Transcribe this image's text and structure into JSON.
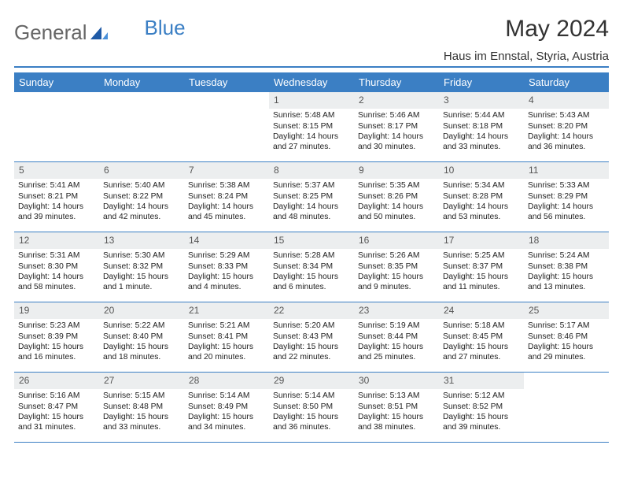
{
  "logo": {
    "text1": "General",
    "text2": "Blue"
  },
  "title": "May 2024",
  "location": "Haus im Ennstal, Styria, Austria",
  "colors": {
    "header_bg": "#3b7fc4",
    "header_text": "#ffffff",
    "daynum_bg": "#eceeef",
    "border": "#3b7fc4",
    "body_text": "#222222",
    "title_text": "#333333"
  },
  "day_names": [
    "Sunday",
    "Monday",
    "Tuesday",
    "Wednesday",
    "Thursday",
    "Friday",
    "Saturday"
  ],
  "weeks": [
    [
      {
        "empty": true
      },
      {
        "empty": true
      },
      {
        "empty": true
      },
      {
        "num": "1",
        "sunrise": "Sunrise: 5:48 AM",
        "sunset": "Sunset: 8:15 PM",
        "daylight1": "Daylight: 14 hours",
        "daylight2": "and 27 minutes."
      },
      {
        "num": "2",
        "sunrise": "Sunrise: 5:46 AM",
        "sunset": "Sunset: 8:17 PM",
        "daylight1": "Daylight: 14 hours",
        "daylight2": "and 30 minutes."
      },
      {
        "num": "3",
        "sunrise": "Sunrise: 5:44 AM",
        "sunset": "Sunset: 8:18 PM",
        "daylight1": "Daylight: 14 hours",
        "daylight2": "and 33 minutes."
      },
      {
        "num": "4",
        "sunrise": "Sunrise: 5:43 AM",
        "sunset": "Sunset: 8:20 PM",
        "daylight1": "Daylight: 14 hours",
        "daylight2": "and 36 minutes."
      }
    ],
    [
      {
        "num": "5",
        "sunrise": "Sunrise: 5:41 AM",
        "sunset": "Sunset: 8:21 PM",
        "daylight1": "Daylight: 14 hours",
        "daylight2": "and 39 minutes."
      },
      {
        "num": "6",
        "sunrise": "Sunrise: 5:40 AM",
        "sunset": "Sunset: 8:22 PM",
        "daylight1": "Daylight: 14 hours",
        "daylight2": "and 42 minutes."
      },
      {
        "num": "7",
        "sunrise": "Sunrise: 5:38 AM",
        "sunset": "Sunset: 8:24 PM",
        "daylight1": "Daylight: 14 hours",
        "daylight2": "and 45 minutes."
      },
      {
        "num": "8",
        "sunrise": "Sunrise: 5:37 AM",
        "sunset": "Sunset: 8:25 PM",
        "daylight1": "Daylight: 14 hours",
        "daylight2": "and 48 minutes."
      },
      {
        "num": "9",
        "sunrise": "Sunrise: 5:35 AM",
        "sunset": "Sunset: 8:26 PM",
        "daylight1": "Daylight: 14 hours",
        "daylight2": "and 50 minutes."
      },
      {
        "num": "10",
        "sunrise": "Sunrise: 5:34 AM",
        "sunset": "Sunset: 8:28 PM",
        "daylight1": "Daylight: 14 hours",
        "daylight2": "and 53 minutes."
      },
      {
        "num": "11",
        "sunrise": "Sunrise: 5:33 AM",
        "sunset": "Sunset: 8:29 PM",
        "daylight1": "Daylight: 14 hours",
        "daylight2": "and 56 minutes."
      }
    ],
    [
      {
        "num": "12",
        "sunrise": "Sunrise: 5:31 AM",
        "sunset": "Sunset: 8:30 PM",
        "daylight1": "Daylight: 14 hours",
        "daylight2": "and 58 minutes."
      },
      {
        "num": "13",
        "sunrise": "Sunrise: 5:30 AM",
        "sunset": "Sunset: 8:32 PM",
        "daylight1": "Daylight: 15 hours",
        "daylight2": "and 1 minute."
      },
      {
        "num": "14",
        "sunrise": "Sunrise: 5:29 AM",
        "sunset": "Sunset: 8:33 PM",
        "daylight1": "Daylight: 15 hours",
        "daylight2": "and 4 minutes."
      },
      {
        "num": "15",
        "sunrise": "Sunrise: 5:28 AM",
        "sunset": "Sunset: 8:34 PM",
        "daylight1": "Daylight: 15 hours",
        "daylight2": "and 6 minutes."
      },
      {
        "num": "16",
        "sunrise": "Sunrise: 5:26 AM",
        "sunset": "Sunset: 8:35 PM",
        "daylight1": "Daylight: 15 hours",
        "daylight2": "and 9 minutes."
      },
      {
        "num": "17",
        "sunrise": "Sunrise: 5:25 AM",
        "sunset": "Sunset: 8:37 PM",
        "daylight1": "Daylight: 15 hours",
        "daylight2": "and 11 minutes."
      },
      {
        "num": "18",
        "sunrise": "Sunrise: 5:24 AM",
        "sunset": "Sunset: 8:38 PM",
        "daylight1": "Daylight: 15 hours",
        "daylight2": "and 13 minutes."
      }
    ],
    [
      {
        "num": "19",
        "sunrise": "Sunrise: 5:23 AM",
        "sunset": "Sunset: 8:39 PM",
        "daylight1": "Daylight: 15 hours",
        "daylight2": "and 16 minutes."
      },
      {
        "num": "20",
        "sunrise": "Sunrise: 5:22 AM",
        "sunset": "Sunset: 8:40 PM",
        "daylight1": "Daylight: 15 hours",
        "daylight2": "and 18 minutes."
      },
      {
        "num": "21",
        "sunrise": "Sunrise: 5:21 AM",
        "sunset": "Sunset: 8:41 PM",
        "daylight1": "Daylight: 15 hours",
        "daylight2": "and 20 minutes."
      },
      {
        "num": "22",
        "sunrise": "Sunrise: 5:20 AM",
        "sunset": "Sunset: 8:43 PM",
        "daylight1": "Daylight: 15 hours",
        "daylight2": "and 22 minutes."
      },
      {
        "num": "23",
        "sunrise": "Sunrise: 5:19 AM",
        "sunset": "Sunset: 8:44 PM",
        "daylight1": "Daylight: 15 hours",
        "daylight2": "and 25 minutes."
      },
      {
        "num": "24",
        "sunrise": "Sunrise: 5:18 AM",
        "sunset": "Sunset: 8:45 PM",
        "daylight1": "Daylight: 15 hours",
        "daylight2": "and 27 minutes."
      },
      {
        "num": "25",
        "sunrise": "Sunrise: 5:17 AM",
        "sunset": "Sunset: 8:46 PM",
        "daylight1": "Daylight: 15 hours",
        "daylight2": "and 29 minutes."
      }
    ],
    [
      {
        "num": "26",
        "sunrise": "Sunrise: 5:16 AM",
        "sunset": "Sunset: 8:47 PM",
        "daylight1": "Daylight: 15 hours",
        "daylight2": "and 31 minutes."
      },
      {
        "num": "27",
        "sunrise": "Sunrise: 5:15 AM",
        "sunset": "Sunset: 8:48 PM",
        "daylight1": "Daylight: 15 hours",
        "daylight2": "and 33 minutes."
      },
      {
        "num": "28",
        "sunrise": "Sunrise: 5:14 AM",
        "sunset": "Sunset: 8:49 PM",
        "daylight1": "Daylight: 15 hours",
        "daylight2": "and 34 minutes."
      },
      {
        "num": "29",
        "sunrise": "Sunrise: 5:14 AM",
        "sunset": "Sunset: 8:50 PM",
        "daylight1": "Daylight: 15 hours",
        "daylight2": "and 36 minutes."
      },
      {
        "num": "30",
        "sunrise": "Sunrise: 5:13 AM",
        "sunset": "Sunset: 8:51 PM",
        "daylight1": "Daylight: 15 hours",
        "daylight2": "and 38 minutes."
      },
      {
        "num": "31",
        "sunrise": "Sunrise: 5:12 AM",
        "sunset": "Sunset: 8:52 PM",
        "daylight1": "Daylight: 15 hours",
        "daylight2": "and 39 minutes."
      },
      {
        "empty": true
      }
    ]
  ]
}
